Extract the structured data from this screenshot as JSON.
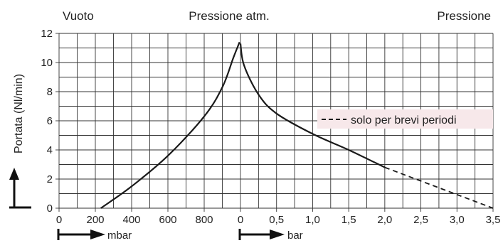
{
  "chart_data": {
    "type": "line",
    "headers": {
      "left": "Vuoto",
      "center": "Pressione atm.",
      "right": "Pressione"
    },
    "ylabel": "Portata (Nl/min)",
    "ylim": [
      0,
      12
    ],
    "y_ticks": [
      "0",
      "2",
      "4",
      "6",
      "8",
      "10",
      "12"
    ],
    "x_vacuum": {
      "unit": "mbar",
      "ticks": [
        "0",
        "200",
        "400",
        "600",
        "800",
        "0"
      ],
      "range": [
        0,
        1000
      ]
    },
    "x_pressure": {
      "unit": "bar",
      "ticks": [
        "0",
        "0,5",
        "1,0",
        "1,5",
        "2,0",
        "2,5",
        "3,0",
        "3,5"
      ],
      "range": [
        0,
        3.5
      ]
    },
    "legend": "solo per brevi periodi",
    "series": [
      {
        "axis": "vacuum",
        "points": [
          [
            230,
            0
          ],
          [
            400,
            1.5
          ],
          [
            600,
            3.6
          ],
          [
            800,
            6.3
          ],
          [
            900,
            8.3
          ],
          [
            960,
            10.3
          ],
          [
            995,
            11.4
          ]
        ]
      },
      {
        "axis": "pressure",
        "points": [
          [
            0,
            11.3
          ],
          [
            0.05,
            9.8
          ],
          [
            0.25,
            7.8
          ],
          [
            0.5,
            6.5
          ],
          [
            1.0,
            5.1
          ],
          [
            1.5,
            4.0
          ],
          [
            2.0,
            2.8
          ]
        ]
      },
      {
        "axis": "pressure",
        "style": "dashed",
        "points": [
          [
            2.0,
            2.8
          ],
          [
            3.5,
            0
          ]
        ]
      }
    ],
    "colors": {
      "line": "#1a1a1a",
      "legend_bg": "#f7e8ea"
    }
  }
}
